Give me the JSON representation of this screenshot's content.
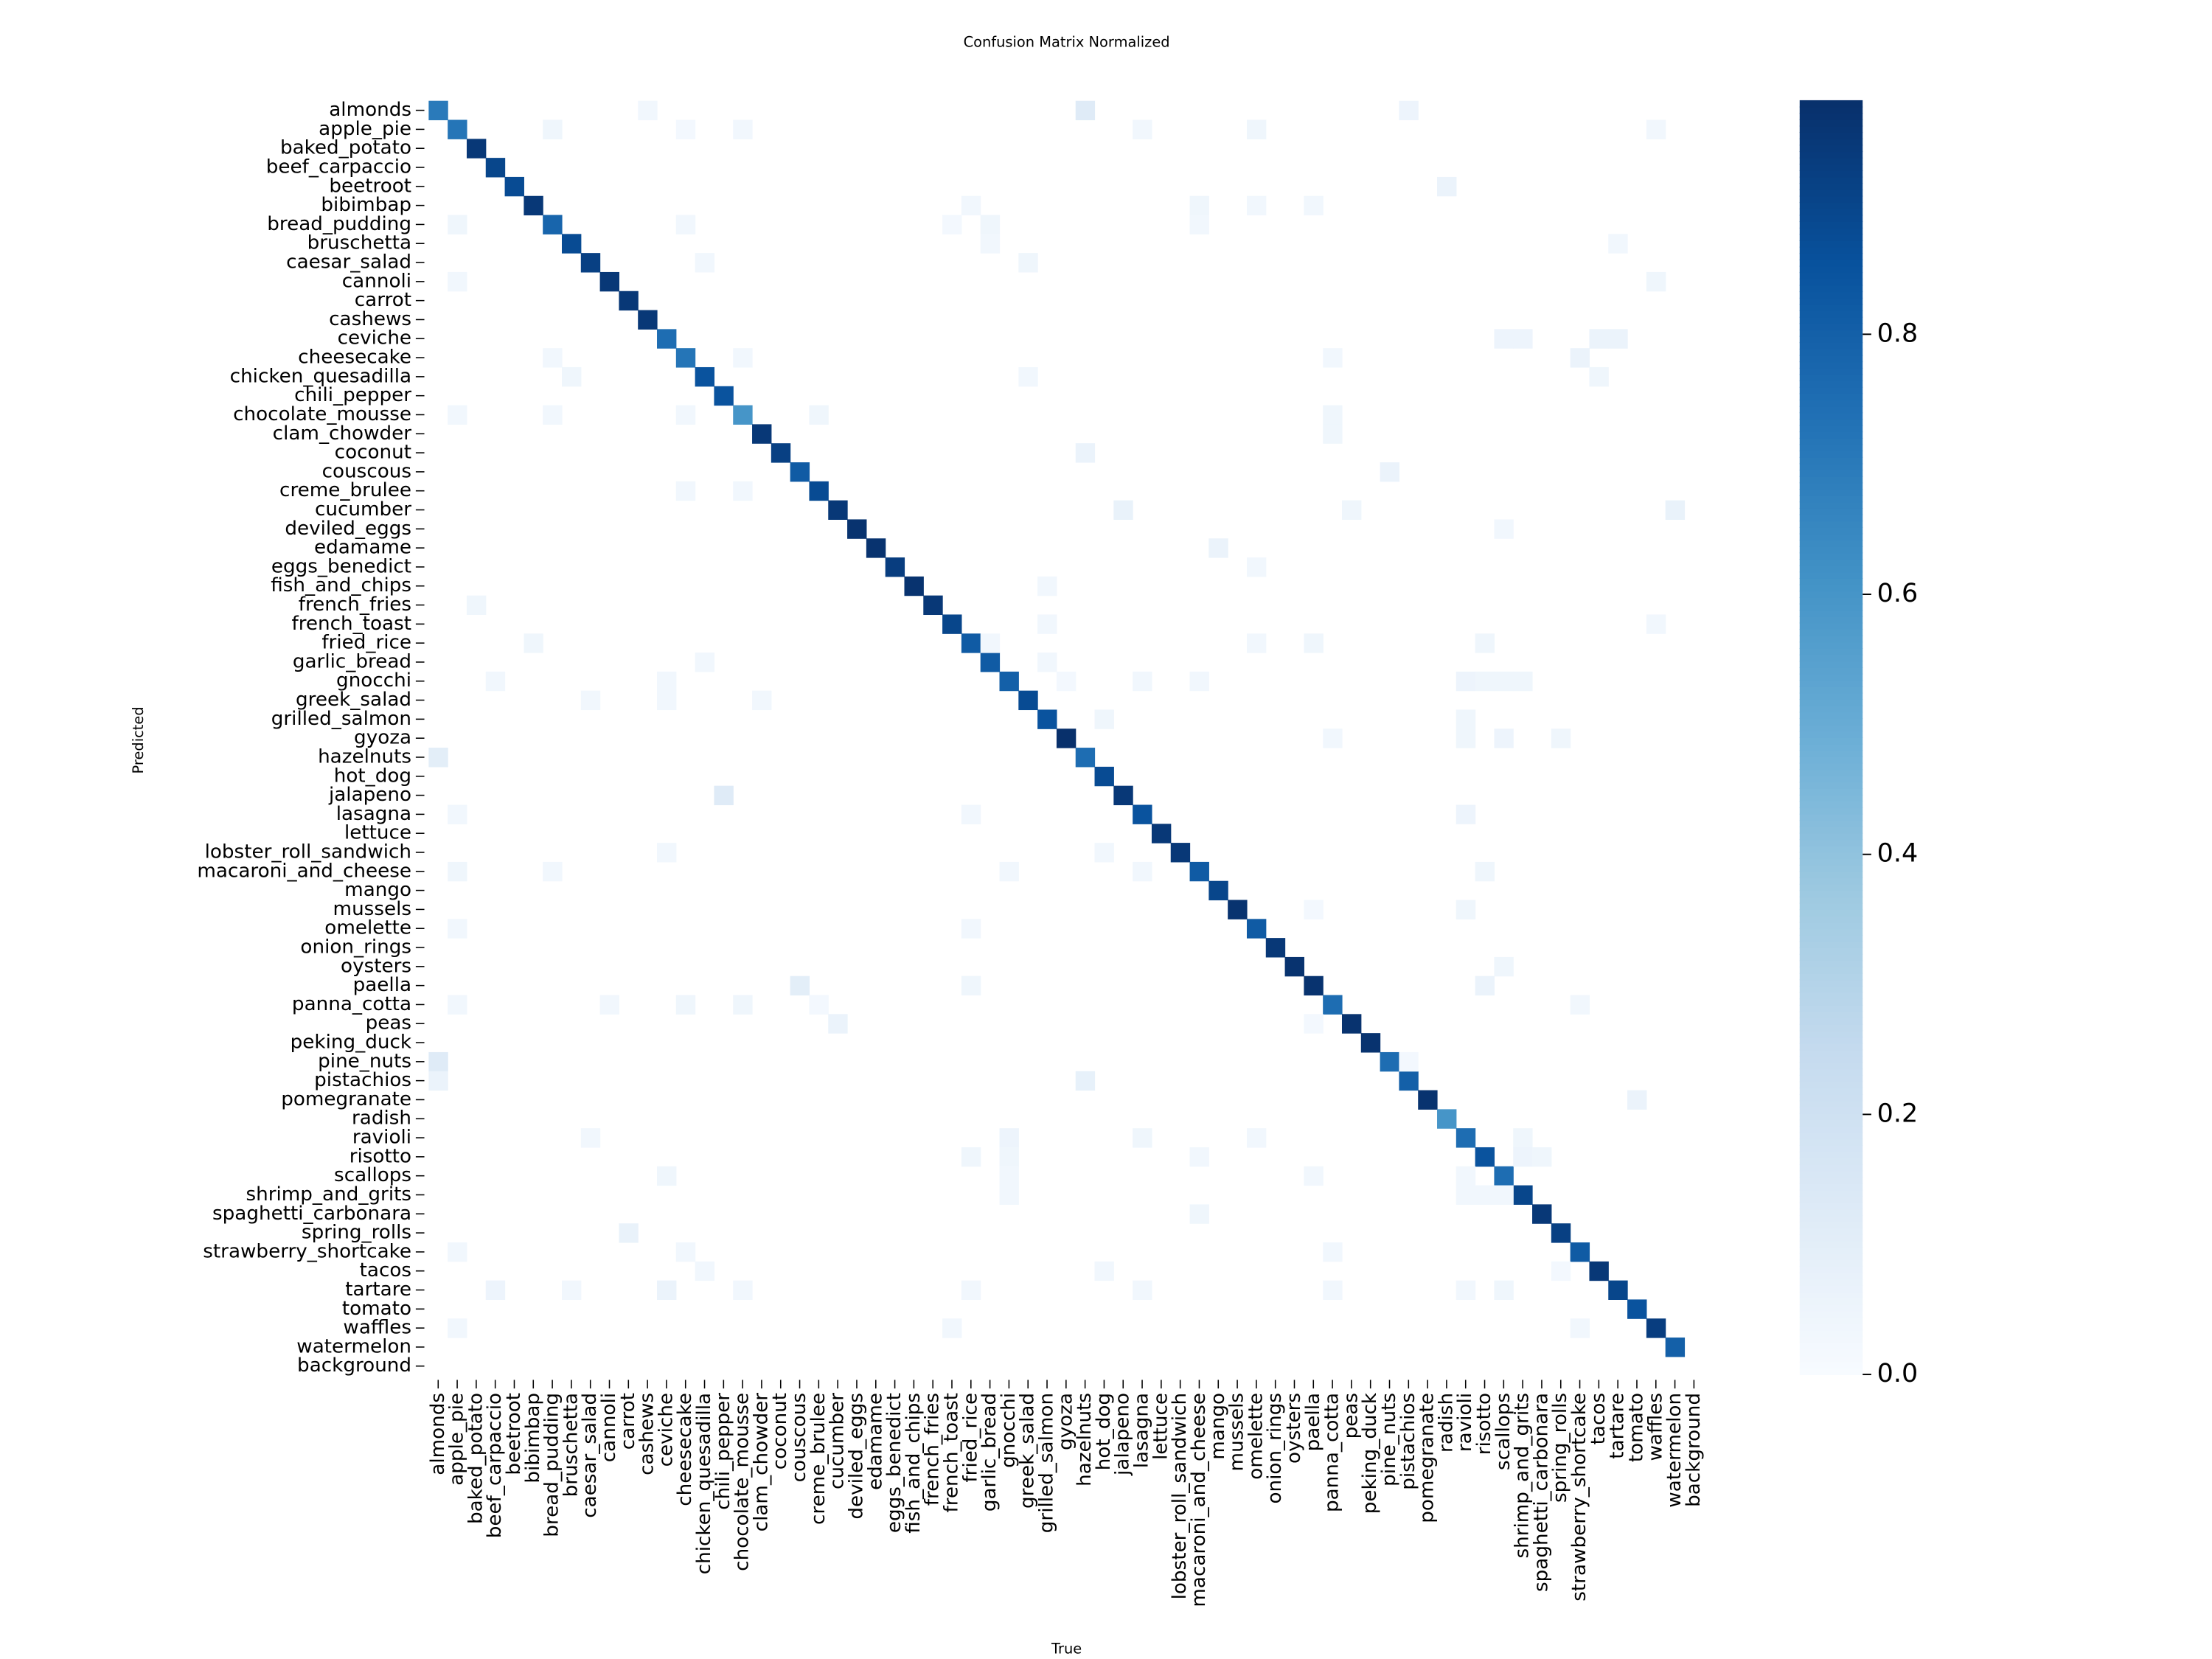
{
  "chart_data": {
    "type": "heatmap",
    "title": "Confusion Matrix Normalized",
    "x_label": "True",
    "y_label": "Predicted",
    "colormap": "Blues",
    "categories": [
      "almonds",
      "apple_pie",
      "baked_potato",
      "beef_carpaccio",
      "beetroot",
      "bibimbap",
      "bread_pudding",
      "bruschetta",
      "caesar_salad",
      "cannoli",
      "carrot",
      "cashews",
      "ceviche",
      "cheesecake",
      "chicken_quesadilla",
      "chili_pepper",
      "chocolate_mousse",
      "clam_chowder",
      "coconut",
      "couscous",
      "creme_brulee",
      "cucumber",
      "deviled_eggs",
      "edamame",
      "eggs_benedict",
      "fish_and_chips",
      "french_fries",
      "french_toast",
      "fried_rice",
      "garlic_bread",
      "gnocchi",
      "greek_salad",
      "grilled_salmon",
      "gyoza",
      "hazelnuts",
      "hot_dog",
      "jalapeno",
      "lasagna",
      "lettuce",
      "lobster_roll_sandwich",
      "macaroni_and_cheese",
      "mango",
      "mussels",
      "omelette",
      "onion_rings",
      "oysters",
      "paella",
      "panna_cotta",
      "peas",
      "peking_duck",
      "pine_nuts",
      "pistachios",
      "pomegranate",
      "radish",
      "ravioli",
      "risotto",
      "scallops",
      "shrimp_and_grits",
      "spaghetti_carbonara",
      "spring_rolls",
      "strawberry_shortcake",
      "tacos",
      "tartare",
      "tomato",
      "waffles",
      "watermelon",
      "background"
    ],
    "cells": [
      [
        0,
        0,
        0.7
      ],
      [
        1,
        1,
        0.72
      ],
      [
        2,
        2,
        0.95
      ],
      [
        3,
        3,
        0.9
      ],
      [
        4,
        4,
        0.88
      ],
      [
        5,
        5,
        0.95
      ],
      [
        6,
        6,
        0.78
      ],
      [
        7,
        7,
        0.88
      ],
      [
        8,
        8,
        0.92
      ],
      [
        9,
        9,
        0.95
      ],
      [
        10,
        10,
        0.95
      ],
      [
        11,
        11,
        0.95
      ],
      [
        12,
        12,
        0.75
      ],
      [
        13,
        13,
        0.72
      ],
      [
        14,
        14,
        0.85
      ],
      [
        15,
        15,
        0.85
      ],
      [
        16,
        16,
        0.6
      ],
      [
        17,
        17,
        0.95
      ],
      [
        18,
        18,
        0.92
      ],
      [
        19,
        19,
        0.82
      ],
      [
        20,
        20,
        0.88
      ],
      [
        21,
        21,
        0.95
      ],
      [
        22,
        22,
        0.97
      ],
      [
        23,
        23,
        0.97
      ],
      [
        24,
        24,
        0.93
      ],
      [
        25,
        25,
        0.97
      ],
      [
        26,
        26,
        0.95
      ],
      [
        27,
        27,
        0.9
      ],
      [
        28,
        28,
        0.82
      ],
      [
        29,
        29,
        0.82
      ],
      [
        30,
        30,
        0.8
      ],
      [
        31,
        31,
        0.88
      ],
      [
        32,
        32,
        0.85
      ],
      [
        33,
        33,
        0.98
      ],
      [
        34,
        34,
        0.75
      ],
      [
        35,
        35,
        0.88
      ],
      [
        36,
        36,
        0.95
      ],
      [
        37,
        37,
        0.85
      ],
      [
        38,
        38,
        0.95
      ],
      [
        39,
        39,
        0.95
      ],
      [
        40,
        40,
        0.82
      ],
      [
        41,
        41,
        0.9
      ],
      [
        42,
        42,
        0.97
      ],
      [
        43,
        43,
        0.82
      ],
      [
        44,
        44,
        0.95
      ],
      [
        45,
        45,
        0.97
      ],
      [
        46,
        46,
        0.97
      ],
      [
        47,
        47,
        0.75
      ],
      [
        48,
        48,
        0.97
      ],
      [
        49,
        49,
        0.97
      ],
      [
        50,
        50,
        0.75
      ],
      [
        51,
        51,
        0.8
      ],
      [
        52,
        52,
        0.97
      ],
      [
        53,
        53,
        0.6
      ],
      [
        54,
        54,
        0.75
      ],
      [
        55,
        55,
        0.85
      ],
      [
        56,
        56,
        0.75
      ],
      [
        57,
        57,
        0.9
      ],
      [
        58,
        58,
        0.95
      ],
      [
        59,
        59,
        0.92
      ],
      [
        60,
        60,
        0.82
      ],
      [
        61,
        61,
        0.95
      ],
      [
        62,
        62,
        0.9
      ],
      [
        63,
        63,
        0.85
      ],
      [
        64,
        64,
        0.93
      ],
      [
        65,
        65,
        0.8
      ],
      [
        0,
        11,
        0.03
      ],
      [
        0,
        34,
        0.12
      ],
      [
        0,
        51,
        0.05
      ],
      [
        1,
        6,
        0.04
      ],
      [
        1,
        13,
        0.02
      ],
      [
        1,
        16,
        0.03
      ],
      [
        1,
        37,
        0.03
      ],
      [
        1,
        43,
        0.04
      ],
      [
        1,
        64,
        0.03
      ],
      [
        4,
        53,
        0.06
      ],
      [
        5,
        28,
        0.03
      ],
      [
        5,
        40,
        0.04
      ],
      [
        5,
        43,
        0.03
      ],
      [
        5,
        46,
        0.03
      ],
      [
        6,
        1,
        0.04
      ],
      [
        6,
        13,
        0.03
      ],
      [
        6,
        27,
        0.02
      ],
      [
        6,
        29,
        0.04
      ],
      [
        6,
        40,
        0.03
      ],
      [
        7,
        29,
        0.03
      ],
      [
        7,
        62,
        0.03
      ],
      [
        8,
        14,
        0.03
      ],
      [
        8,
        31,
        0.04
      ],
      [
        9,
        1,
        0.03
      ],
      [
        9,
        64,
        0.04
      ],
      [
        12,
        56,
        0.05
      ],
      [
        12,
        57,
        0.05
      ],
      [
        12,
        61,
        0.06
      ],
      [
        12,
        62,
        0.06
      ],
      [
        13,
        6,
        0.03
      ],
      [
        13,
        16,
        0.03
      ],
      [
        13,
        47,
        0.03
      ],
      [
        13,
        60,
        0.06
      ],
      [
        14,
        7,
        0.04
      ],
      [
        14,
        31,
        0.03
      ],
      [
        14,
        61,
        0.04
      ],
      [
        16,
        1,
        0.03
      ],
      [
        16,
        6,
        0.03
      ],
      [
        16,
        13,
        0.03
      ],
      [
        16,
        20,
        0.04
      ],
      [
        16,
        47,
        0.04
      ],
      [
        17,
        47,
        0.04
      ],
      [
        18,
        34,
        0.06
      ],
      [
        19,
        50,
        0.06
      ],
      [
        20,
        13,
        0.03
      ],
      [
        20,
        16,
        0.03
      ],
      [
        21,
        36,
        0.07
      ],
      [
        21,
        48,
        0.04
      ],
      [
        21,
        65,
        0.07
      ],
      [
        22,
        56,
        0.03
      ],
      [
        23,
        41,
        0.06
      ],
      [
        24,
        43,
        0.03
      ],
      [
        25,
        32,
        0.03
      ],
      [
        26,
        2,
        0.04
      ],
      [
        27,
        32,
        0.03
      ],
      [
        27,
        64,
        0.03
      ],
      [
        28,
        5,
        0.04
      ],
      [
        28,
        29,
        0.03
      ],
      [
        28,
        43,
        0.03
      ],
      [
        28,
        46,
        0.04
      ],
      [
        28,
        55,
        0.04
      ],
      [
        29,
        14,
        0.03
      ],
      [
        29,
        32,
        0.03
      ],
      [
        30,
        3,
        0.03
      ],
      [
        30,
        12,
        0.03
      ],
      [
        30,
        33,
        0.02
      ],
      [
        30,
        37,
        0.03
      ],
      [
        30,
        40,
        0.03
      ],
      [
        30,
        54,
        0.05
      ],
      [
        30,
        55,
        0.04
      ],
      [
        30,
        56,
        0.04
      ],
      [
        30,
        57,
        0.04
      ],
      [
        31,
        8,
        0.03
      ],
      [
        31,
        12,
        0.03
      ],
      [
        31,
        17,
        0.03
      ],
      [
        32,
        35,
        0.04
      ],
      [
        32,
        54,
        0.04
      ],
      [
        33,
        47,
        0.03
      ],
      [
        33,
        54,
        0.04
      ],
      [
        33,
        56,
        0.05
      ],
      [
        33,
        59,
        0.04
      ],
      [
        34,
        0,
        0.1
      ],
      [
        36,
        15,
        0.12
      ],
      [
        37,
        1,
        0.03
      ],
      [
        37,
        28,
        0.03
      ],
      [
        37,
        54,
        0.05
      ],
      [
        39,
        12,
        0.03
      ],
      [
        39,
        35,
        0.03
      ],
      [
        40,
        1,
        0.04
      ],
      [
        40,
        6,
        0.03
      ],
      [
        40,
        30,
        0.03
      ],
      [
        40,
        37,
        0.03
      ],
      [
        40,
        55,
        0.04
      ],
      [
        42,
        46,
        0.02
      ],
      [
        42,
        54,
        0.04
      ],
      [
        43,
        1,
        0.03
      ],
      [
        43,
        28,
        0.03
      ],
      [
        45,
        56,
        0.04
      ],
      [
        46,
        19,
        0.1
      ],
      [
        46,
        28,
        0.04
      ],
      [
        46,
        55,
        0.06
      ],
      [
        47,
        1,
        0.03
      ],
      [
        47,
        9,
        0.03
      ],
      [
        47,
        13,
        0.04
      ],
      [
        47,
        16,
        0.04
      ],
      [
        47,
        20,
        0.02
      ],
      [
        47,
        60,
        0.03
      ],
      [
        48,
        21,
        0.06
      ],
      [
        48,
        46,
        0.02
      ],
      [
        50,
        0,
        0.12
      ],
      [
        50,
        51,
        0.02
      ],
      [
        51,
        0,
        0.06
      ],
      [
        51,
        34,
        0.08
      ],
      [
        52,
        63,
        0.06
      ],
      [
        54,
        8,
        0.03
      ],
      [
        54,
        30,
        0.05
      ],
      [
        54,
        37,
        0.04
      ],
      [
        54,
        43,
        0.03
      ],
      [
        54,
        57,
        0.04
      ],
      [
        55,
        28,
        0.04
      ],
      [
        55,
        30,
        0.04
      ],
      [
        55,
        40,
        0.03
      ],
      [
        55,
        57,
        0.05
      ],
      [
        55,
        58,
        0.04
      ],
      [
        56,
        12,
        0.04
      ],
      [
        56,
        30,
        0.03
      ],
      [
        56,
        46,
        0.03
      ],
      [
        56,
        54,
        0.03
      ],
      [
        57,
        30,
        0.03
      ],
      [
        57,
        54,
        0.03
      ],
      [
        57,
        55,
        0.03
      ],
      [
        57,
        56,
        0.03
      ],
      [
        58,
        40,
        0.04
      ],
      [
        59,
        10,
        0.07
      ],
      [
        60,
        1,
        0.03
      ],
      [
        60,
        13,
        0.03
      ],
      [
        60,
        47,
        0.03
      ],
      [
        61,
        14,
        0.03
      ],
      [
        61,
        35,
        0.03
      ],
      [
        61,
        59,
        0.02
      ],
      [
        62,
        3,
        0.05
      ],
      [
        62,
        7,
        0.03
      ],
      [
        62,
        12,
        0.06
      ],
      [
        62,
        16,
        0.03
      ],
      [
        62,
        28,
        0.03
      ],
      [
        62,
        37,
        0.03
      ],
      [
        62,
        47,
        0.03
      ],
      [
        62,
        54,
        0.03
      ],
      [
        62,
        56,
        0.04
      ],
      [
        64,
        1,
        0.03
      ],
      [
        64,
        27,
        0.03
      ],
      [
        64,
        60,
        0.03
      ]
    ],
    "clim": [
      0,
      0.98
    ],
    "cticks": [
      {
        "value": 0,
        "label": "0.0"
      },
      0.2,
      0.4,
      0.6,
      0.8
    ]
  }
}
